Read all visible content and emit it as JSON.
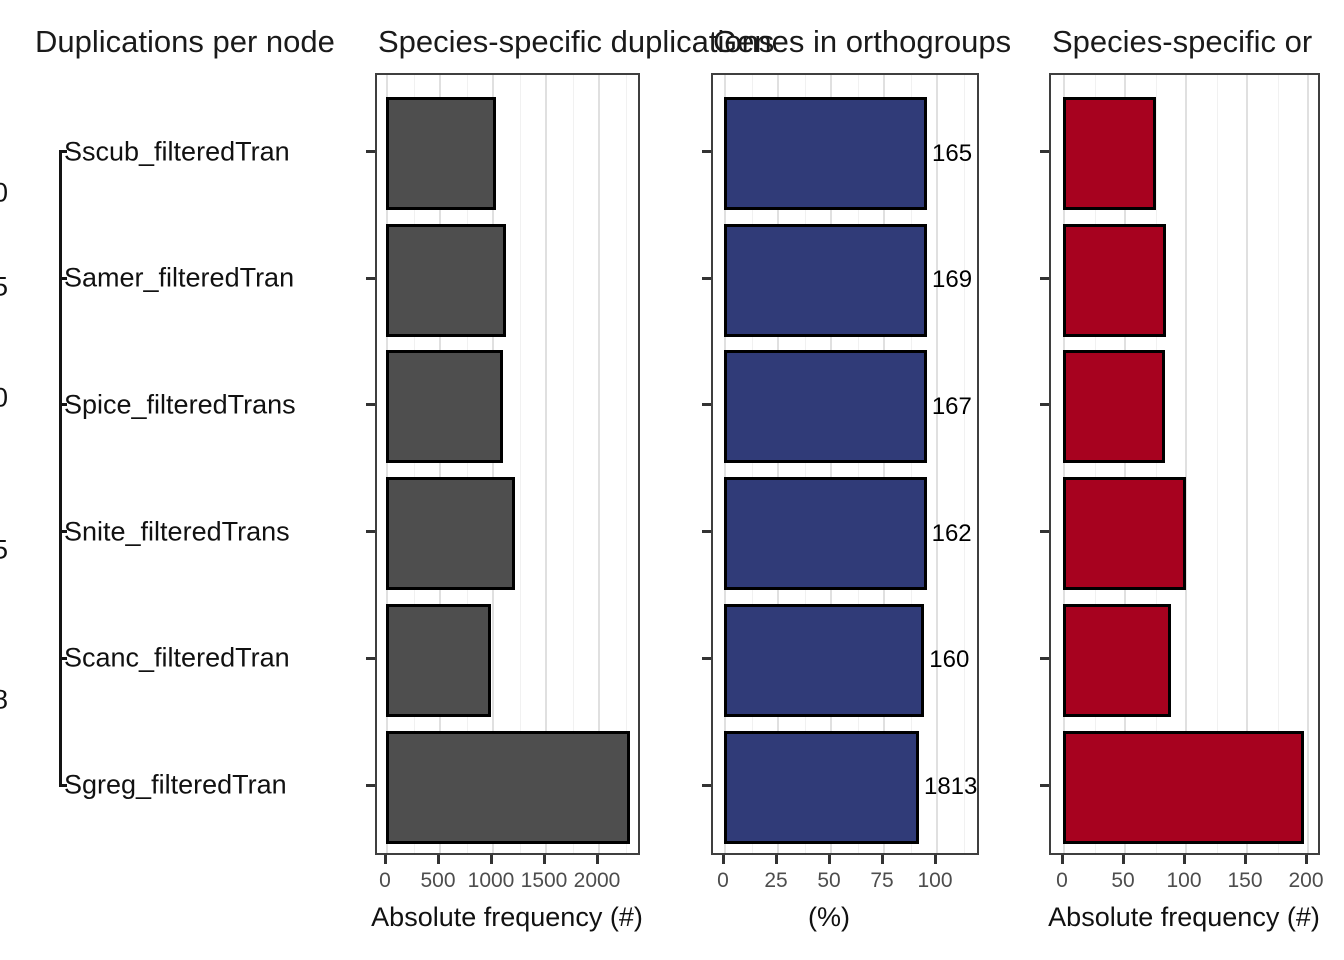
{
  "figure": {
    "titles": [
      "Duplications per node",
      "Species-specific duplications",
      "Genes in orthogroups",
      "Species-specific or"
    ]
  },
  "tree": {
    "title": "Duplications per node",
    "tips": [
      "Sscub_filteredTran",
      "Samer_filteredTran",
      "Spice_filteredTrans",
      "Snite_filteredTrans",
      "Scanc_filteredTran",
      "Sgreg_filteredTran"
    ],
    "node_label_fragments": [
      "0",
      "5",
      "0",
      "5",
      "8"
    ]
  },
  "chart_data": [
    {
      "type": "bar",
      "orientation": "horizontal",
      "title": "Species-specific duplications",
      "categories": [
        "Sscub_filteredTran",
        "Samer_filteredTran",
        "Spice_filteredTrans",
        "Snite_filteredTrans",
        "Scanc_filteredTran",
        "Sgreg_filteredTran"
      ],
      "values": [
        1025,
        1120,
        1090,
        1210,
        985,
        2295
      ],
      "xlabel": "Absolute frequency (#)",
      "xticks": [
        0,
        500,
        1000,
        1500,
        2000
      ],
      "xlim": [
        0,
        2400
      ],
      "grid": true,
      "legend": "none",
      "bar_color": "#4e4e4e",
      "bar_border": "#000000"
    },
    {
      "type": "bar",
      "orientation": "horizontal",
      "title": "Genes in orthogroups",
      "categories": [
        "Sscub_filteredTran",
        "Samer_filteredTran",
        "Spice_filteredTrans",
        "Snite_filteredTrans",
        "Scanc_filteredTran",
        "Sgreg_filteredTran"
      ],
      "values": [
        95.3,
        95.3,
        95.2,
        95.1,
        94.0,
        91.5
      ],
      "bar_labels": [
        "165",
        "169",
        "167",
        "162",
        "160",
        "1813"
      ],
      "xlabel": "(%)",
      "xticks": [
        0,
        25,
        50,
        75,
        100
      ],
      "xlim": [
        0,
        120
      ],
      "grid": true,
      "legend": "none",
      "bar_color": "#303b78",
      "bar_border": "#000000"
    },
    {
      "type": "bar",
      "orientation": "horizontal",
      "title": "Species-specific or",
      "categories": [
        "Sscub_filteredTran",
        "Samer_filteredTran",
        "Spice_filteredTrans",
        "Snite_filteredTrans",
        "Scanc_filteredTran",
        "Sgreg_filteredTran"
      ],
      "values": [
        75,
        84,
        83,
        100,
        88,
        197
      ],
      "xlabel": "Absolute frequency (#)",
      "xticks": [
        0,
        50,
        100,
        150,
        200
      ],
      "xlim": [
        0,
        211
      ],
      "grid": true,
      "legend": "none",
      "bar_color": "#a7021f",
      "bar_border": "#000000"
    }
  ]
}
